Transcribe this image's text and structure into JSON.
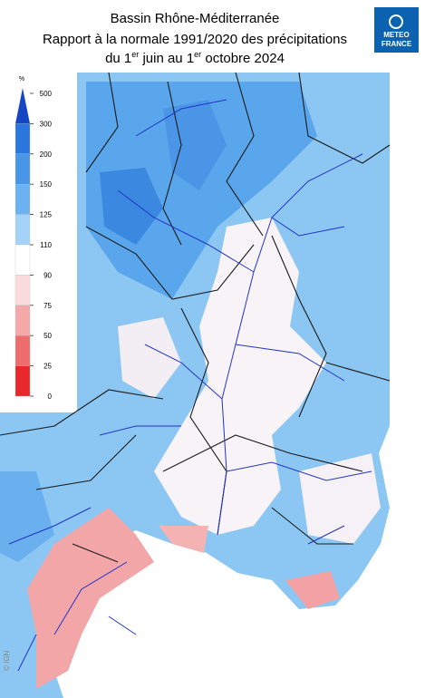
{
  "header": {
    "title_lines": [
      "Bassin Rhône-Méditerranée",
      "Rapport à la normale 1991/2020 des précipitations"
    ],
    "period": [
      "du 1",
      "er",
      " juin au 1",
      "er",
      " octobre 2024"
    ]
  },
  "logo": [
    "METEO",
    "FRANCE"
  ],
  "credit": "© IGN",
  "legend": {
    "unit": "%",
    "ticks": [
      500,
      300,
      200,
      150,
      125,
      110,
      90,
      75,
      50,
      25,
      0
    ],
    "colors": [
      "#1746c4",
      "#2a78de",
      "#4896e8",
      "#6cb2f0",
      "#a3d4f7",
      "#ffffff",
      "#fbdcdc",
      "#f5a8a8",
      "#ef6c6c",
      "#e8282a"
    ]
  }
}
